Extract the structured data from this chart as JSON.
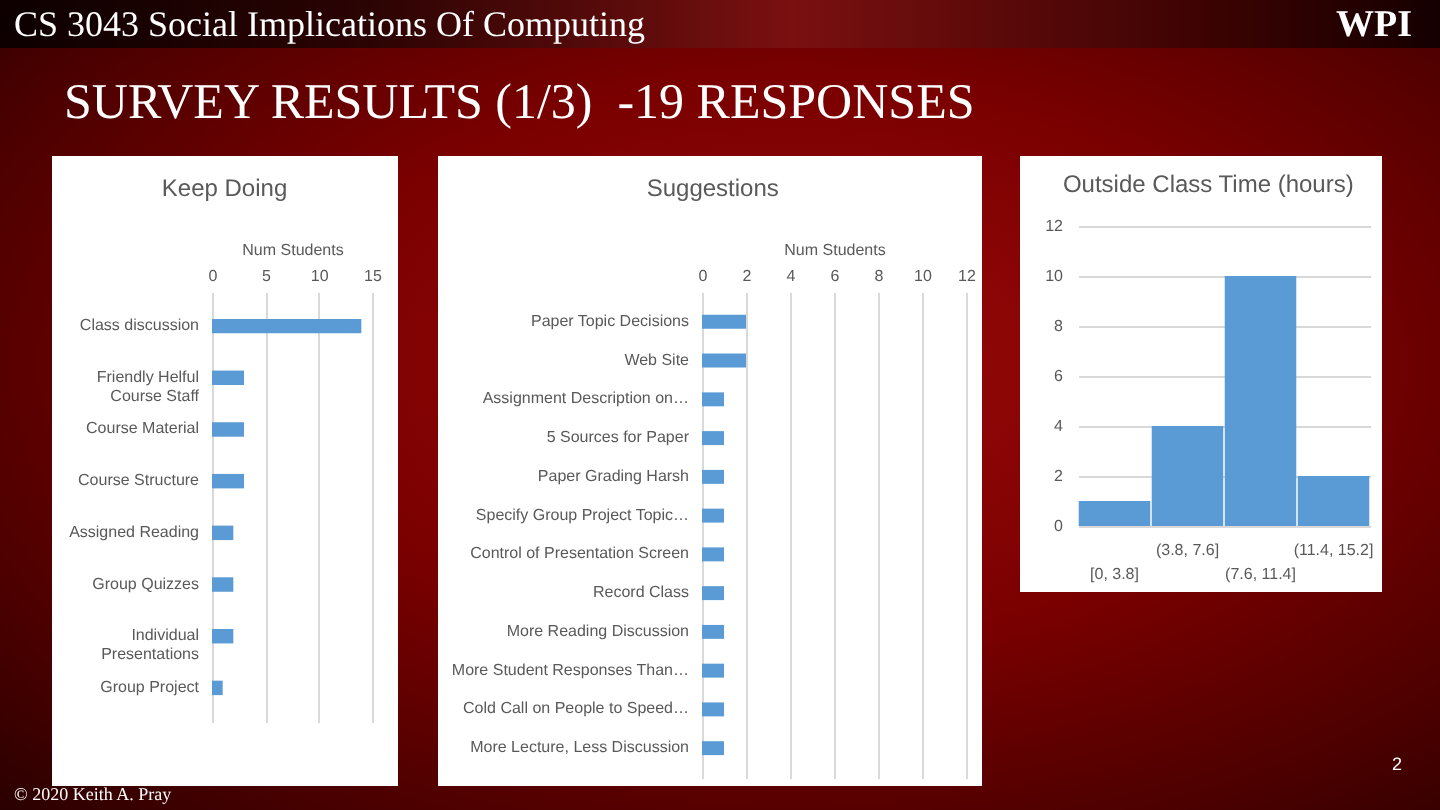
{
  "chart_data": [
    {
      "type": "other",
      "title": "SURVEY RESULTS (1/3)  -19 RESPONSES",
      "annotations": [
        "CS 3043 Social Implications Of Computing",
        "WPI",
        "© 2020 Keith A. Pray",
        "2"
      ]
    },
    {
      "type": "bar",
      "orientation": "horizontal",
      "title": "Keep Doing",
      "xlabel": "Num Students",
      "categories": [
        "Class discussion",
        "Friendly Helful Course Staff",
        "Course Material",
        "Course Structure",
        "Assigned Reading",
        "Group Quizzes",
        "Individual Presentations",
        "Group Project"
      ],
      "values": [
        14,
        3,
        3,
        3,
        2,
        2,
        2,
        1
      ],
      "color": "#5b9bd5",
      "xlim": [
        0,
        15
      ],
      "xticks": [
        0,
        5,
        10,
        15
      ],
      "grid": "x"
    },
    {
      "type": "bar",
      "orientation": "horizontal",
      "title": "Suggestions",
      "xlabel": "Num Students",
      "categories": [
        "Paper Topic Decisions",
        "Web Site",
        "Assignment Description on…",
        "5 Sources for Paper",
        "Paper Grading Harsh",
        "Specify Group Project Topic…",
        "Control of Presentation Screen",
        "Record Class",
        "More Reading Discussion",
        "More Student Responses Than…",
        "Cold Call on People to Speed…",
        "More Lecture, Less Discussion"
      ],
      "values": [
        2,
        2,
        1,
        1,
        1,
        1,
        1,
        1,
        1,
        1,
        1,
        1
      ],
      "color": "#5b9bd5",
      "xlim": [
        0,
        12
      ],
      "xticks": [
        0,
        2,
        4,
        6,
        8,
        10,
        12
      ],
      "grid": "x"
    },
    {
      "type": "bar",
      "title": "Outside Class Time (hours)",
      "categories": [
        "[0, 3.8]",
        "(3.8, 7.6]",
        "(7.6, 11.4]",
        "(11.4, 15.2]"
      ],
      "values": [
        1,
        4,
        10,
        2
      ],
      "color": "#5b9bd5",
      "ylim": [
        0,
        12
      ],
      "yticks": [
        0,
        2,
        4,
        6,
        8,
        10,
        12
      ],
      "grid": "y"
    }
  ]
}
